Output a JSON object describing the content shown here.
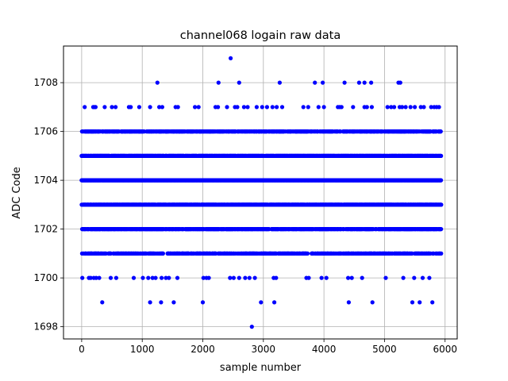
{
  "chart_data": {
    "type": "scatter",
    "title": "channel068 logain raw data",
    "xlabel": "sample number",
    "ylabel": "ADC Code",
    "xlim": [
      -300,
      6200
    ],
    "ylim": [
      1697.5,
      1709.5
    ],
    "xticks": [
      0,
      1000,
      2000,
      3000,
      4000,
      5000,
      6000
    ],
    "yticks": [
      1698,
      1700,
      1702,
      1704,
      1706,
      1708
    ],
    "grid": true,
    "marker_color": "#0000ff",
    "n_samples": 5940,
    "dense_levels": [
      {
        "y": 1701,
        "density": 0.55
      },
      {
        "y": 1702,
        "density": 0.75
      },
      {
        "y": 1703,
        "density": 0.9
      },
      {
        "y": 1704,
        "density": 1.0
      },
      {
        "y": 1705,
        "density": 0.9
      },
      {
        "y": 1706,
        "density": 0.6
      }
    ],
    "sparse_points": [
      {
        "y": 1709,
        "x": [
          2460
        ]
      },
      {
        "y": 1708,
        "x": [
          1250,
          2260,
          2600,
          3270,
          3850,
          3980,
          4340,
          4580,
          4670,
          4780,
          5230,
          5260
        ]
      },
      {
        "y": 1707,
        "x": [
          50,
          190,
          210,
          230,
          380,
          500,
          560,
          780,
          810,
          950,
          1130,
          1280,
          1330,
          1550,
          1590,
          1870,
          1930,
          2210,
          2250,
          2400,
          2530,
          2570,
          2680,
          2740,
          2890,
          2980,
          3060,
          3150,
          3220,
          3310,
          3660,
          3740,
          3910,
          4000,
          4230,
          4260,
          4290,
          4480,
          4670,
          4710,
          4790,
          5050,
          5110,
          5160,
          5250,
          5290,
          5350,
          5430,
          5500,
          5600,
          5650,
          5770,
          5820,
          5860,
          5900
        ]
      },
      {
        "y": 1700,
        "x": [
          10,
          120,
          150,
          200,
          240,
          290,
          480,
          570,
          860,
          1010,
          1100,
          1170,
          1220,
          1320,
          1390,
          1440,
          1580,
          2010,
          2060,
          2100,
          2450,
          2510,
          2600,
          2700,
          2770,
          2860,
          3170,
          3210,
          3710,
          3750,
          3960,
          4040,
          4400,
          4460,
          4630,
          5020,
          5310,
          5490,
          5630,
          5740
        ]
      },
      {
        "y": 1699,
        "x": [
          340,
          1130,
          1310,
          1520,
          2000,
          2960,
          3180,
          4410,
          4800,
          5460,
          5580,
          5790
        ]
      },
      {
        "y": 1698,
        "x": [
          2810
        ]
      }
    ]
  }
}
